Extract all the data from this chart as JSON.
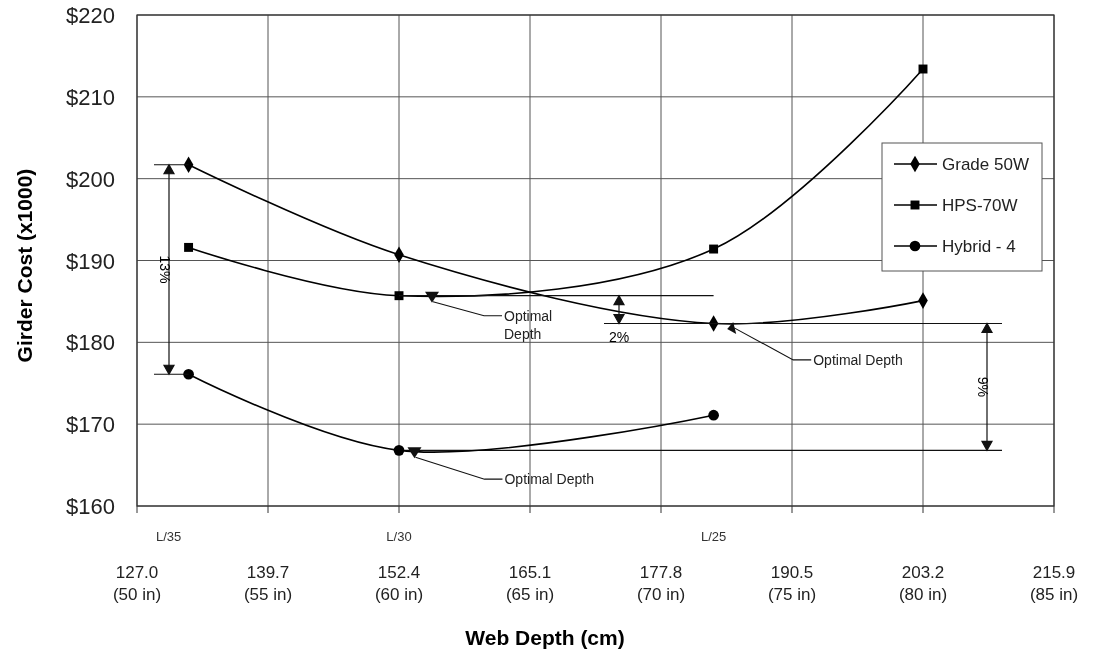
{
  "chart_data": {
    "type": "line",
    "xlabel": "Web Depth (cm)",
    "ylabel": "Girder Cost (x1000)",
    "xlim": [
      127,
      215.9
    ],
    "ylim": [
      160,
      220
    ],
    "xticks": [
      {
        "value": 127,
        "label": "127.0"
      },
      139.7,
      152.4,
      165.1,
      177.8,
      190.5,
      203.2,
      215.9
    ],
    "x2lim": [
      50,
      85
    ],
    "x2ticks": [
      {
        "value": 50,
        "label": "(50 in)"
      },
      {
        "value": 55,
        "label": "(55 in)"
      },
      {
        "value": 60,
        "label": "(60 in)"
      },
      {
        "value": 65,
        "label": "(65 in)"
      },
      {
        "value": 70,
        "label": "(70 in)"
      },
      {
        "value": 75,
        "label": "(75 in)"
      },
      {
        "value": 80,
        "label": "(80 in)"
      },
      {
        "value": 85,
        "label": "(85 in)"
      }
    ],
    "yticks": [
      {
        "value": 160,
        "label": "$160"
      },
      {
        "value": 170,
        "label": "$170"
      },
      {
        "value": 180,
        "label": "$180"
      },
      {
        "value": 190,
        "label": "$190"
      },
      {
        "value": 200,
        "label": "$200"
      },
      {
        "value": 210,
        "label": "$210"
      },
      {
        "value": 220,
        "label": "$220"
      }
    ],
    "ref_lines": [
      {
        "axis": "y",
        "value": 166.8
      }
    ],
    "grid": true,
    "legend": "right",
    "line_style": "solid",
    "series": [
      {
        "name": "Grade 50W",
        "color": "#000000",
        "marker": "diamond",
        "x": [
          132,
          152.4,
          182.9,
          203.2
        ],
        "values": [
          201.7,
          190.7,
          182.3,
          185.1
        ]
      },
      {
        "name": "HPS-70W",
        "color": "#000000",
        "marker": "square",
        "x": [
          132,
          152.4,
          182.9,
          203.2
        ],
        "values": [
          191.6,
          185.7,
          191.4,
          213.4
        ]
      },
      {
        "name": "Hybrid - 4",
        "color": "#000000",
        "marker": "circle",
        "x": [
          132,
          152.4,
          182.9
        ],
        "values": [
          176.1,
          166.8,
          171.1
        ]
      }
    ],
    "annotations": [
      "13%",
      {
        "text": "2%",
        "x": 182.9,
        "y": 182.3
      },
      "9%",
      {
        "text": "Optimal\nDepth",
        "x": 155.6,
        "y": 185.7
      },
      {
        "text": "Optimal Depth",
        "x": 153.9,
        "y": 166.7
      },
      {
        "text": "Optimal Depth",
        "x": 184.8,
        "y": 182.5
      },
      "L/35",
      "L/30",
      "L/25"
    ]
  }
}
